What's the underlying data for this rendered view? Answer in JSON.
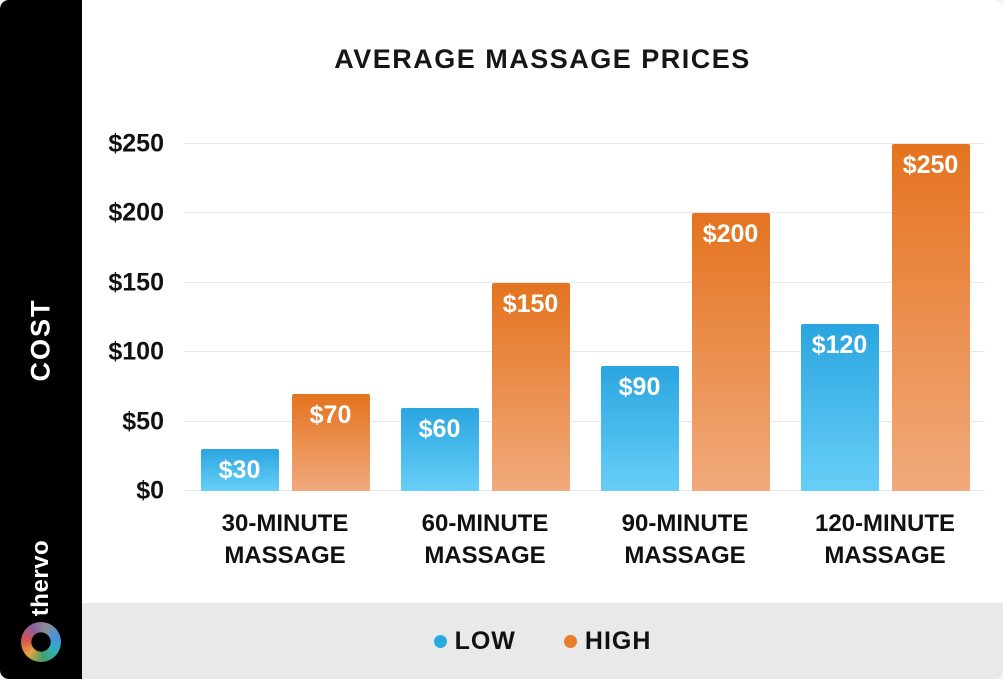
{
  "sidebar": {
    "axis_label": "COST",
    "brand": "thervo"
  },
  "chart_data": {
    "type": "bar",
    "title": "AVERAGE MASSAGE PRICES",
    "categories": [
      "30-MINUTE MASSAGE",
      "60-MINUTE MASSAGE",
      "90-MINUTE MASSAGE",
      "120-MINUTE MASSAGE"
    ],
    "series": [
      {
        "name": "LOW",
        "color": "#29abe2",
        "color_top": "#2aa5e0",
        "color_bottom": "#67cff7",
        "values": [
          30,
          60,
          90,
          120
        ]
      },
      {
        "name": "HIGH",
        "color": "#e87e2b",
        "color_top": "#e4731f",
        "color_bottom": "#f1aa7c",
        "values": [
          70,
          150,
          200,
          250
        ]
      }
    ],
    "ylabel": "COST",
    "ylim": [
      0,
      250
    ],
    "yticks": [
      0,
      50,
      100,
      150,
      200,
      250
    ],
    "ytick_prefix": "$",
    "value_label_prefix": "$",
    "grid": "horizontal",
    "legend_position": "bottom"
  }
}
